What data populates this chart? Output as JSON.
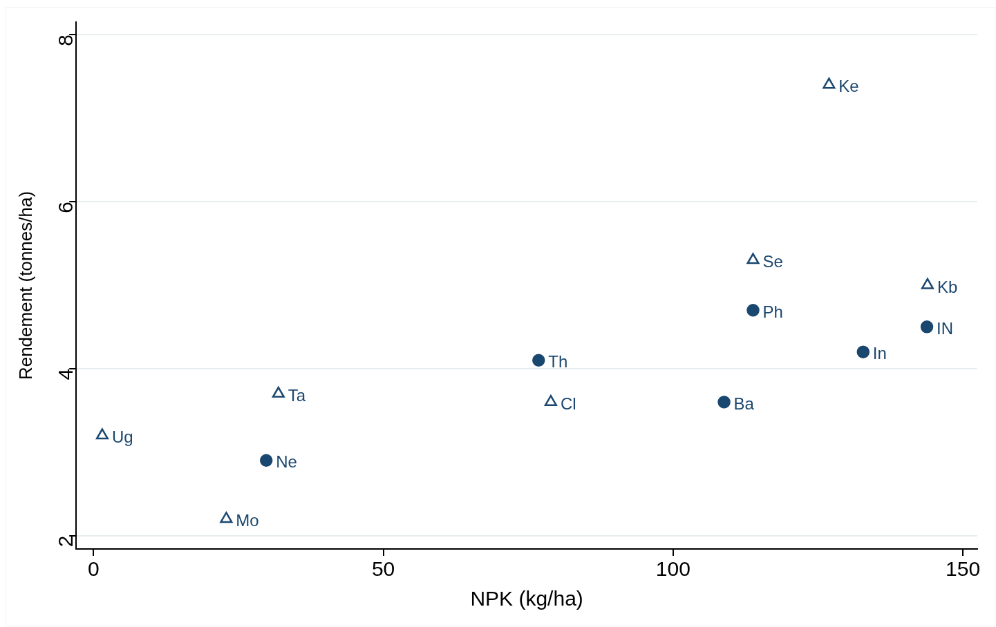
{
  "chart_data": {
    "type": "scatter",
    "xlabel": "NPK (kg/ha)",
    "ylabel": "Rendement (tonnes/ha)",
    "xlim": [
      -3,
      152.5
    ],
    "ylim": [
      1.84,
      8.15
    ],
    "xticks": [
      0,
      50,
      100,
      150
    ],
    "yticks": [
      2,
      4,
      6,
      8
    ],
    "grid": "y",
    "series": [
      {
        "color": "#1a476f",
        "marker": "triangle",
        "x": [
          1.5,
          31.9,
          22.9,
          78.9,
          113.8,
          126.9,
          143.9
        ],
        "values": [
          3.2,
          3.7,
          2.2,
          3.6,
          5.3,
          7.4,
          5.0
        ]
      },
      {
        "color": "#1a476f",
        "marker": "circle",
        "x": [
          29.8,
          76.8,
          108.8,
          113.8,
          132.8,
          143.8
        ],
        "values": [
          2.9,
          4.1,
          3.6,
          4.7,
          4.2,
          4.5
        ]
      }
    ],
    "annotations": [
      {
        "text": "Ug",
        "x": 1.5,
        "y": 3.2
      },
      {
        "text": "Ta",
        "x": 31.9,
        "y": 3.7
      },
      {
        "text": "Mo",
        "x": 22.9,
        "y": 2.2
      },
      {
        "text": "Cl",
        "x": 78.9,
        "y": 3.6
      },
      {
        "text": "Se",
        "x": 113.8,
        "y": 5.3
      },
      {
        "text": "Ke",
        "x": 126.9,
        "y": 7.4
      },
      {
        "text": "Kb",
        "x": 143.9,
        "y": 5.0
      },
      {
        "text": "Ne",
        "x": 29.8,
        "y": 2.9
      },
      {
        "text": "Th",
        "x": 76.8,
        "y": 4.1
      },
      {
        "text": "Ba",
        "x": 108.8,
        "y": 3.6
      },
      {
        "text": "Ph",
        "x": 113.8,
        "y": 4.7
      },
      {
        "text": "In",
        "x": 132.8,
        "y": 4.2
      },
      {
        "text": "IN",
        "x": 143.8,
        "y": 4.5
      }
    ]
  }
}
